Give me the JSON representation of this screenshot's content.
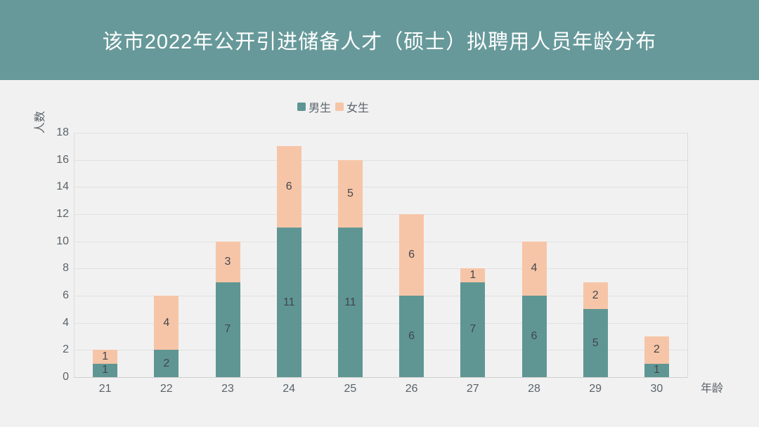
{
  "header": {
    "title": "该市2022年公开引进储备人才（硕士）拟聘用人员年龄分布"
  },
  "legend": {
    "items": [
      {
        "label": "男生",
        "color": "#5f9694"
      },
      {
        "label": "女生",
        "color": "#f6c5a7"
      }
    ]
  },
  "colors": {
    "header_bg": "#67999a",
    "male_bar": "#5f9694",
    "female_bar": "#f6c5a7",
    "background": "#f1f1f1",
    "grid": "#e1e1e1",
    "tick_text": "#5a6268",
    "value_text": "#42464c",
    "title_text": "#ffffff"
  },
  "chart_data": {
    "type": "bar",
    "stacked": true,
    "title": "该市2022年公开引进储备人才（硕士）拟聘用人员年龄分布",
    "xlabel": "年龄",
    "ylabel": "人数",
    "categories": [
      "21",
      "22",
      "23",
      "24",
      "25",
      "26",
      "27",
      "28",
      "29",
      "30"
    ],
    "series": [
      {
        "name": "男生",
        "color": "#5f9694",
        "values": [
          1,
          2,
          7,
          11,
          11,
          6,
          7,
          6,
          5,
          1
        ]
      },
      {
        "name": "女生",
        "color": "#f6c5a7",
        "values": [
          1,
          4,
          3,
          6,
          5,
          6,
          1,
          4,
          2,
          2
        ]
      }
    ],
    "totals": [
      2,
      6,
      10,
      17,
      16,
      12,
      8,
      10,
      7,
      3
    ],
    "ylim": [
      0,
      18
    ],
    "y_ticks": [
      0,
      2,
      4,
      6,
      8,
      10,
      12,
      14,
      16,
      18
    ],
    "grid": true,
    "legend_position": "top-center",
    "show_value_labels": true
  }
}
